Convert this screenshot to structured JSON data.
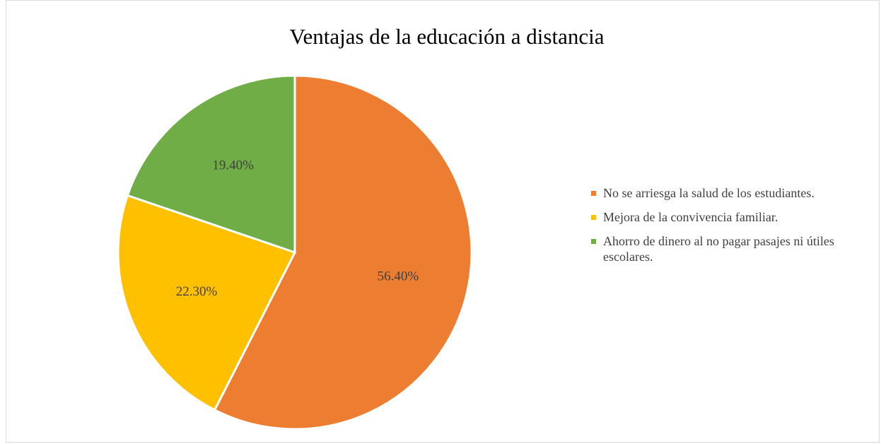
{
  "chart_data": {
    "type": "pie",
    "title": "Ventajas de la educación a distancia",
    "categories": [
      "No se arriesga la salud de los estudiantes.",
      "Mejora de la convivencia familiar.",
      "Ahorro de dinero al no pagar pasajes ni útiles escolares."
    ],
    "values": [
      56.4,
      22.3,
      19.4
    ],
    "value_labels": [
      "56.40%",
      "22.30%",
      "19.40%"
    ],
    "colors": [
      "#ED7D31",
      "#FFC000",
      "#70AD47"
    ],
    "legend": "right"
  }
}
